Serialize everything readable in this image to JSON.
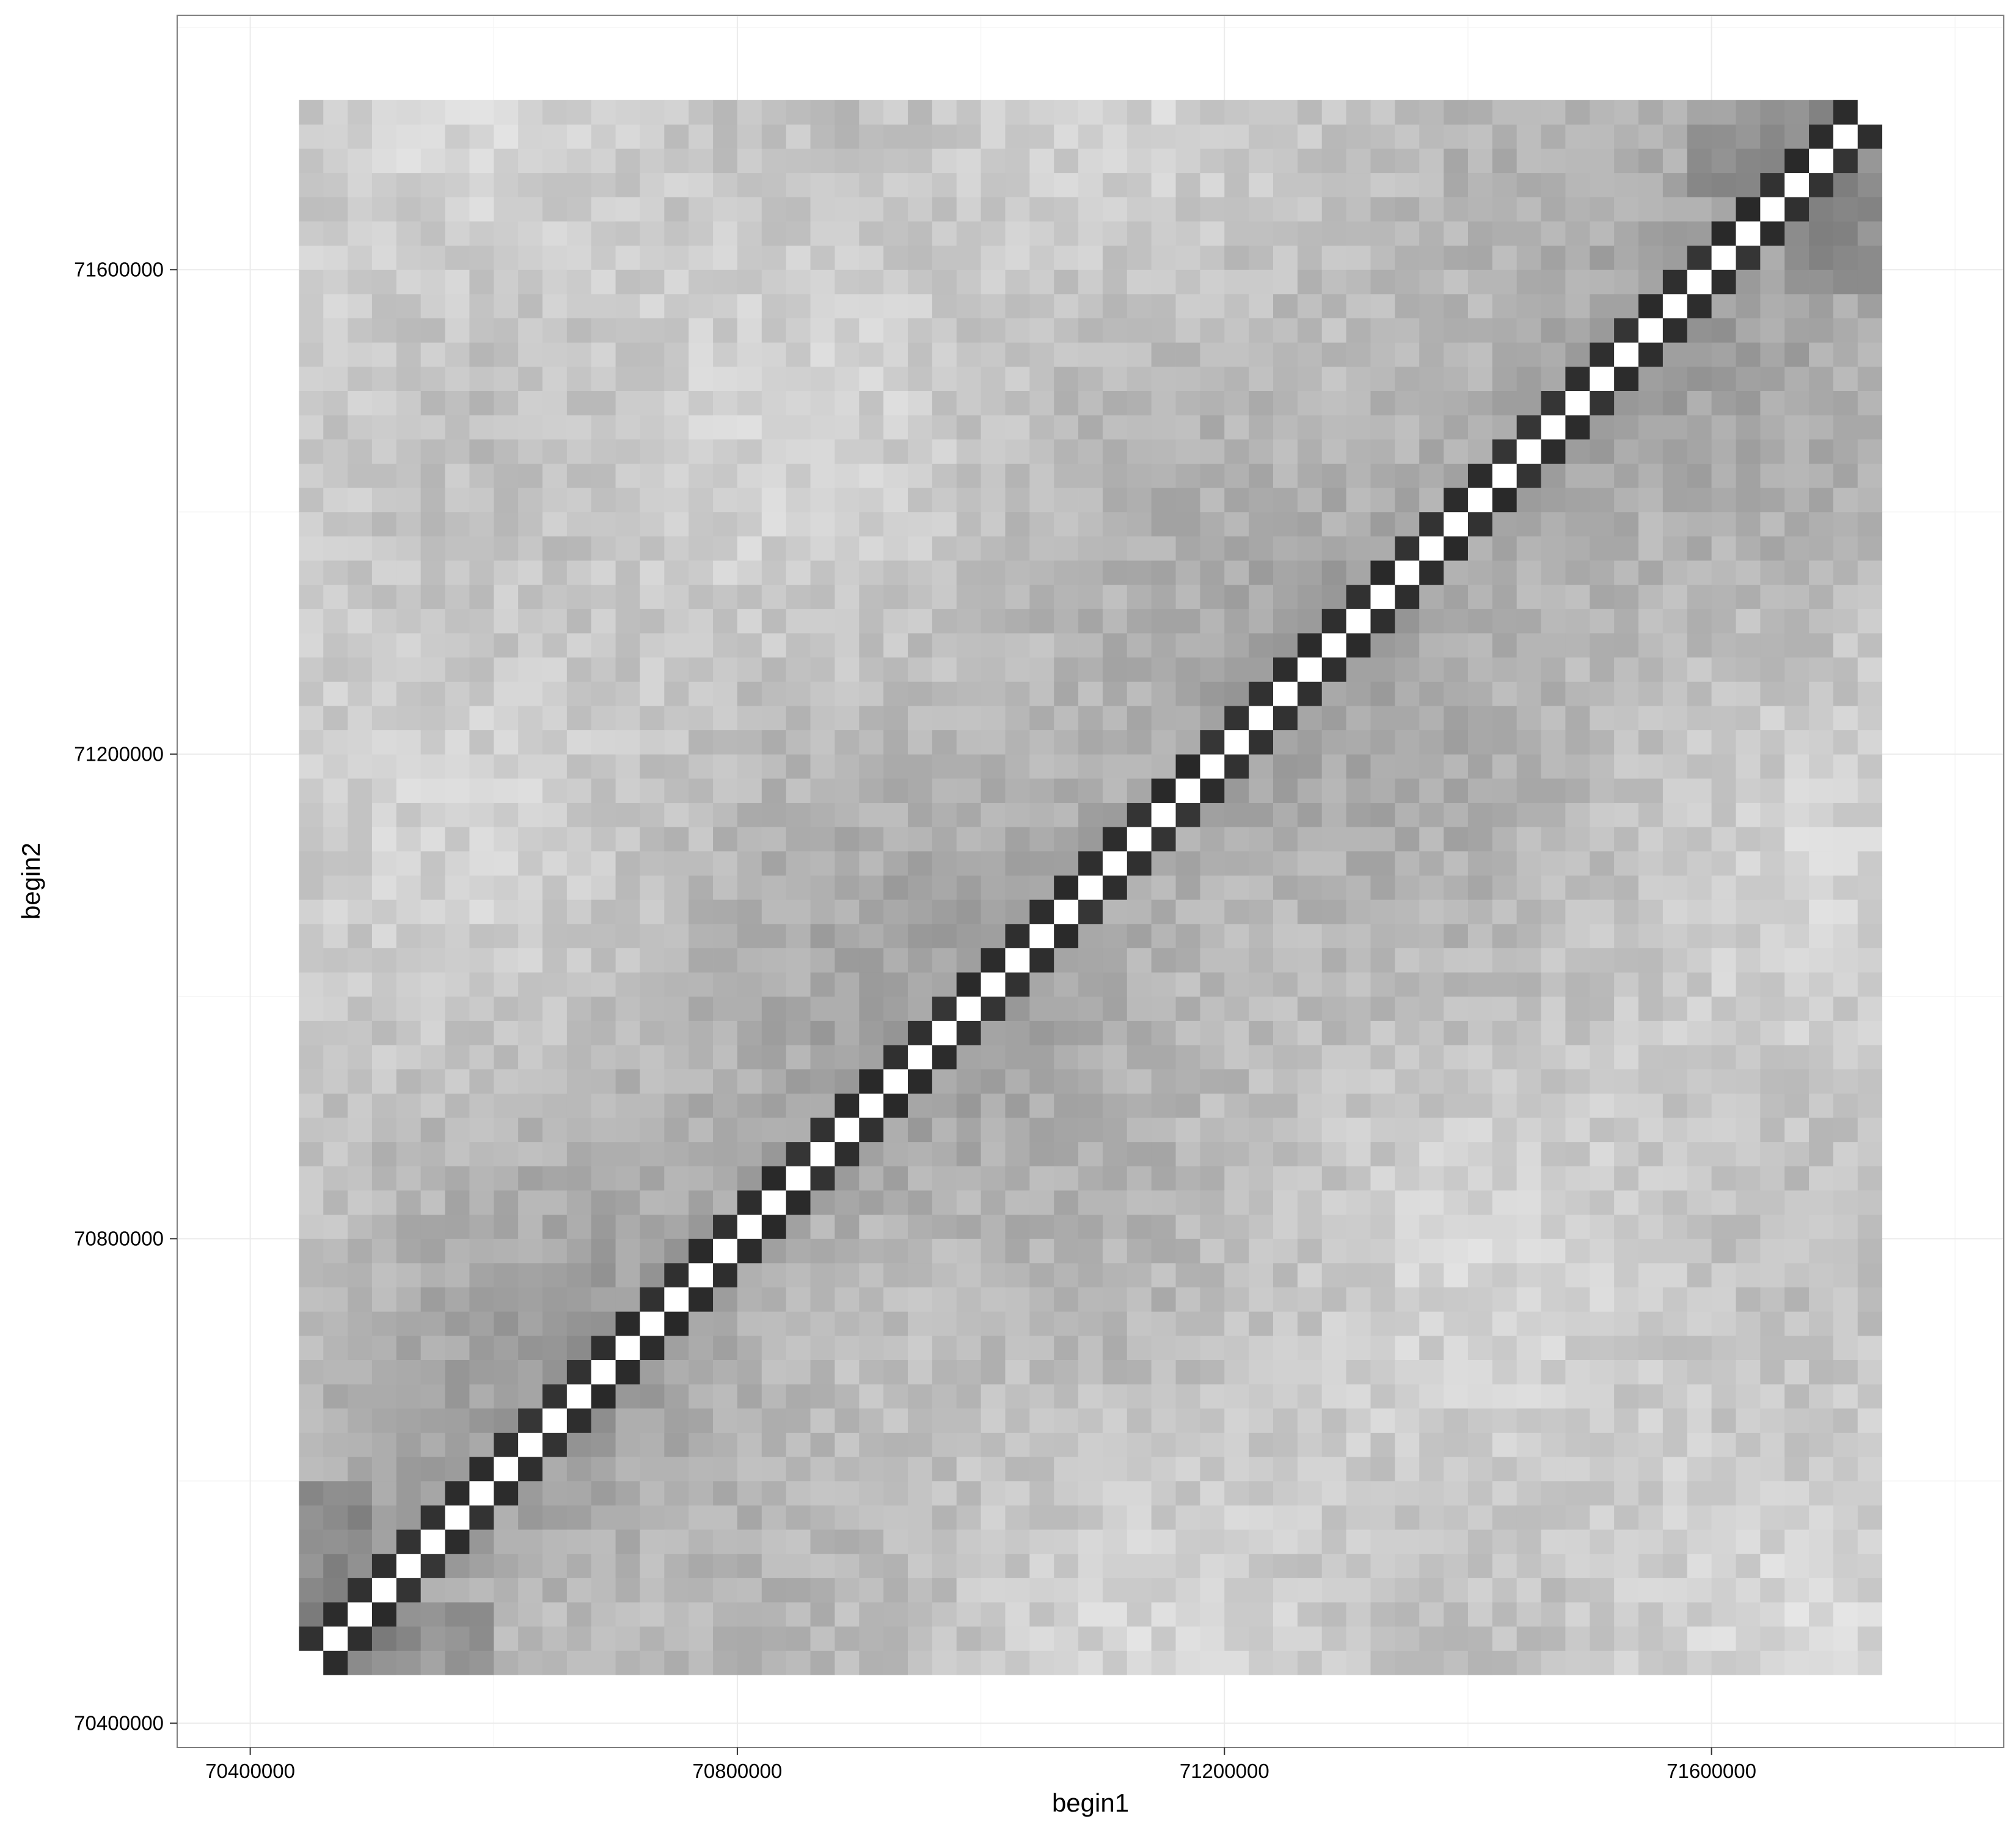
{
  "chart_data": {
    "type": "heatmap",
    "title": "",
    "xlabel": "begin1",
    "ylabel": "begin2",
    "xlim": [
      70340000,
      71840000
    ],
    "ylim": [
      70380000,
      71810000
    ],
    "x_ticks": [
      70400000,
      70800000,
      71200000,
      71600000
    ],
    "y_ticks": [
      70400000,
      70800000,
      71200000,
      71600000
    ],
    "x_tick_labels": [
      "70400000",
      "70800000",
      "71200000",
      "71600000"
    ],
    "y_tick_labels": [
      "70400000",
      "70800000",
      "71200000",
      "71600000"
    ],
    "grid": true,
    "legend": "none",
    "bins": {
      "first_bin_start": 70440000,
      "bin_size": 20000,
      "count": 65
    },
    "value_scale": "darker = higher contact frequency (grayscale, no legend shown)",
    "diagonal_value": 0,
    "near_diagonal_value": 1.0,
    "colors": {
      "panel_background": "#ffffff",
      "panel_border": "#7f7f7f",
      "grid_major": "#ebebeb",
      "grid_minor": "#f5f5f5",
      "low": "#f2f2f2",
      "high": "#000000"
    }
  }
}
